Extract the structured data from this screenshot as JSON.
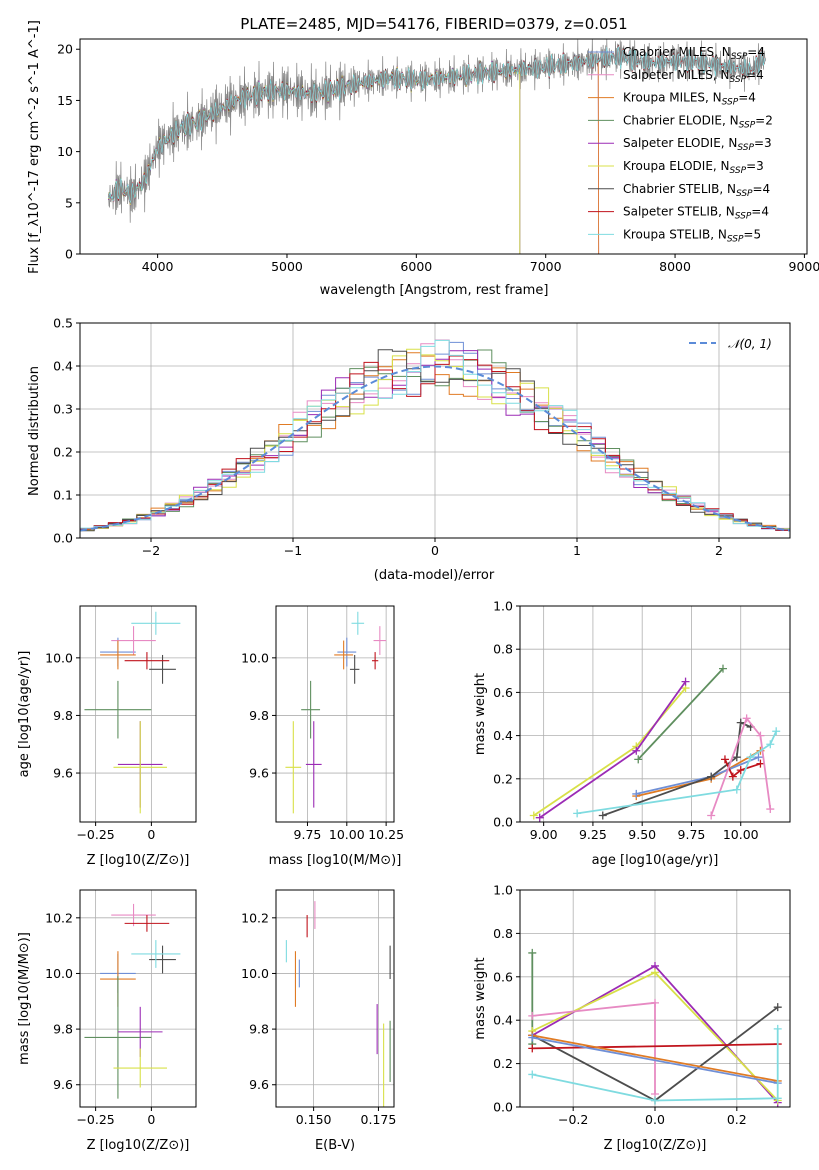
{
  "colors": {
    "Chabrier MILES": "#6f8fd6",
    "Salpeter MILES": "#e78ac3",
    "Kroupa MILES": "#e07b24",
    "Chabrier ELODIE": "#5f8f5f",
    "Salpeter ELODIE": "#9b2bb5",
    "Kroupa ELODIE": "#d8e048",
    "Chabrier STELIB": "#4d4d4d",
    "Salpeter STELIB": "#c0131c",
    "Kroupa STELIB": "#7fdbe0"
  },
  "chart_data": [
    {
      "id": "spectrum",
      "type": "line",
      "title": "PLATE=2485, MJD=54176, FIBERID=0379, z=0.051",
      "xlabel": "wavelength [Angstrom, rest frame]",
      "ylabel": "Flux [f_λ10^-17 erg cm^-2 s^-1 A^-1]",
      "xlim": [
        3400,
        9020
      ],
      "ylim": [
        0,
        21
      ],
      "xticks": [
        4000,
        5000,
        6000,
        7000,
        8000,
        9000
      ],
      "yticks": [
        0,
        5,
        10,
        15,
        20
      ],
      "grid": false,
      "legend_position": "right",
      "series": [
        {
          "name": "Chabrier MILES, N_SSP=4",
          "label_main": "Chabrier MILES, N",
          "label_sub": "SSP",
          "label_tail": "=4",
          "key": "Chabrier MILES"
        },
        {
          "name": "Salpeter MILES, N_SSP=4",
          "label_main": "Salpeter MILES, N",
          "label_sub": "SSP",
          "label_tail": "=4",
          "key": "Salpeter MILES"
        },
        {
          "name": "Kroupa MILES, N_SSP=4",
          "label_main": "Kroupa MILES, N",
          "label_sub": "SSP",
          "label_tail": "=4",
          "key": "Kroupa MILES"
        },
        {
          "name": "Chabrier ELODIE, N_SSP=2",
          "label_main": "Chabrier ELODIE, N",
          "label_sub": "SSP",
          "label_tail": "=2",
          "key": "Chabrier ELODIE"
        },
        {
          "name": "Salpeter ELODIE, N_SSP=3",
          "label_main": "Salpeter ELODIE, N",
          "label_sub": "SSP",
          "label_tail": "=3",
          "key": "Salpeter ELODIE"
        },
        {
          "name": "Kroupa ELODIE, N_SSP=3",
          "label_main": "Kroupa ELODIE, N",
          "label_sub": "SSP",
          "label_tail": "=3",
          "key": "Kroupa ELODIE"
        },
        {
          "name": "Chabrier STELIB, N_SSP=4",
          "label_main": "Chabrier STELIB, N",
          "label_sub": "SSP",
          "label_tail": "=4",
          "key": "Chabrier STELIB"
        },
        {
          "name": "Salpeter STELIB, N_SSP=4",
          "label_main": "Salpeter STELIB, N",
          "label_sub": "SSP",
          "label_tail": "=4",
          "key": "Salpeter STELIB"
        },
        {
          "name": "Kroupa STELIB, N_SSP=5",
          "label_main": "Kroupa STELIB, N",
          "label_sub": "SSP",
          "label_tail": "=5",
          "key": "Kroupa STELIB"
        }
      ],
      "continuum": [
        [
          3620,
          5.2
        ],
        [
          3700,
          6.5
        ],
        [
          3800,
          5.8
        ],
        [
          3900,
          7.2
        ],
        [
          4000,
          10.4
        ],
        [
          4100,
          11.5
        ],
        [
          4200,
          12.5
        ],
        [
          4300,
          12.8
        ],
        [
          4400,
          13.6
        ],
        [
          4600,
          15.0
        ],
        [
          4800,
          15.8
        ],
        [
          5000,
          16.0
        ],
        [
          5200,
          15.6
        ],
        [
          5400,
          16.2
        ],
        [
          5600,
          16.8
        ],
        [
          5800,
          17.2
        ],
        [
          6000,
          17.0
        ],
        [
          6200,
          17.2
        ],
        [
          6400,
          17.5
        ],
        [
          6600,
          17.8
        ],
        [
          6800,
          18.0
        ],
        [
          7000,
          18.3
        ],
        [
          7200,
          18.6
        ],
        [
          7400,
          19.0
        ],
        [
          7600,
          19.3
        ],
        [
          7800,
          18.6
        ],
        [
          8000,
          18.9
        ],
        [
          8200,
          18.7
        ],
        [
          8400,
          18.3
        ],
        [
          8600,
          18.0
        ],
        [
          8700,
          19.3
        ]
      ],
      "cutoffs": {
        "Chabrier MILES": 7410,
        "Salpeter MILES": 7410,
        "Kroupa MILES": 7410,
        "Kroupa ELODIE": 6800,
        "Salpeter ELODIE": 6800,
        "Chabrier ELODIE": 6800
      }
    },
    {
      "id": "residuals",
      "type": "step",
      "xlabel": "(data-model)/error",
      "ylabel": "Normed distribution",
      "xlim": [
        -2.5,
        2.5
      ],
      "ylim": [
        0,
        0.5
      ],
      "xticks": [
        -2,
        -1,
        0,
        1,
        2
      ],
      "yticks": [
        0.0,
        0.1,
        0.2,
        0.3,
        0.4,
        0.5
      ],
      "grid": true,
      "legend_position": "top-right",
      "reference": {
        "name": "N(0,1)",
        "label": "𝒩(0, 1)",
        "mu": 0,
        "sigma": 1,
        "color": "#5b8bd8"
      },
      "bin_width": 0.1
    },
    {
      "id": "age_vs_Z",
      "type": "errorbar",
      "xlabel": "Z [log10(Z/Z⊙)]",
      "ylabel": "age [log10(age/yr)]",
      "xlim": [
        -0.32,
        0.2
      ],
      "ylim": [
        9.43,
        10.18
      ],
      "xticks": [
        -0.25,
        0.0
      ],
      "yticks": [
        9.6,
        9.8,
        10.0
      ],
      "grid": true,
      "points": [
        {
          "key": "Chabrier MILES",
          "x": -0.15,
          "xerr": 0.08,
          "y": 10.02,
          "yerr": 0.05
        },
        {
          "key": "Salpeter MILES",
          "x": -0.08,
          "xerr": 0.1,
          "y": 10.06,
          "yerr": 0.05
        },
        {
          "key": "Kroupa MILES",
          "x": -0.15,
          "xerr": 0.08,
          "y": 10.01,
          "yerr": 0.05
        },
        {
          "key": "Chabrier ELODIE",
          "x": -0.15,
          "xerr": 0.15,
          "y": 9.82,
          "yerr": 0.1
        },
        {
          "key": "Salpeter ELODIE",
          "x": -0.05,
          "xerr": 0.1,
          "y": 9.63,
          "yerr": 0.15
        },
        {
          "key": "Kroupa ELODIE",
          "x": -0.05,
          "xerr": 0.12,
          "y": 9.62,
          "yerr": 0.16
        },
        {
          "key": "Chabrier STELIB",
          "x": 0.05,
          "xerr": 0.06,
          "y": 9.96,
          "yerr": 0.05
        },
        {
          "key": "Salpeter STELIB",
          "x": -0.02,
          "xerr": 0.1,
          "y": 9.99,
          "yerr": 0.03
        },
        {
          "key": "Kroupa STELIB",
          "x": 0.02,
          "xerr": 0.11,
          "y": 10.12,
          "yerr": 0.04
        }
      ]
    },
    {
      "id": "age_vs_mass",
      "type": "errorbar",
      "xlabel": "mass [log10(M/M⊙)]",
      "ylabel": "",
      "xlim": [
        9.55,
        10.3
      ],
      "ylim": [
        9.43,
        10.18
      ],
      "xticks": [
        9.75,
        10.0,
        10.25
      ],
      "xtick_labels": [
        "9.75",
        "10.00",
        "10.25"
      ],
      "yticks": [
        9.6,
        9.8,
        10.0
      ],
      "grid": true,
      "points": [
        {
          "key": "Chabrier MILES",
          "x": 10.0,
          "xerr": 0.06,
          "y": 10.02,
          "yerr": 0.05
        },
        {
          "key": "Salpeter MILES",
          "x": 10.21,
          "xerr": 0.04,
          "y": 10.06,
          "yerr": 0.05
        },
        {
          "key": "Kroupa MILES",
          "x": 9.98,
          "xerr": 0.06,
          "y": 10.01,
          "yerr": 0.05
        },
        {
          "key": "Chabrier ELODIE",
          "x": 9.77,
          "xerr": 0.06,
          "y": 9.82,
          "yerr": 0.1
        },
        {
          "key": "Salpeter ELODIE",
          "x": 9.79,
          "xerr": 0.05,
          "y": 9.63,
          "yerr": 0.15
        },
        {
          "key": "Kroupa ELODIE",
          "x": 9.66,
          "xerr": 0.05,
          "y": 9.62,
          "yerr": 0.16
        },
        {
          "key": "Chabrier STELIB",
          "x": 10.05,
          "xerr": 0.03,
          "y": 9.96,
          "yerr": 0.05
        },
        {
          "key": "Salpeter STELIB",
          "x": 10.18,
          "xerr": 0.02,
          "y": 9.99,
          "yerr": 0.03
        },
        {
          "key": "Kroupa STELIB",
          "x": 10.07,
          "xerr": 0.04,
          "y": 10.12,
          "yerr": 0.04
        }
      ]
    },
    {
      "id": "weight_vs_age",
      "type": "line",
      "xlabel": "age [log10(age/yr)]",
      "ylabel": "mass weight",
      "xlim": [
        8.88,
        10.25
      ],
      "ylim": [
        0,
        1.0
      ],
      "xticks": [
        9.0,
        9.25,
        9.5,
        9.75,
        10.0
      ],
      "xtick_labels": [
        "9.00",
        "9.25",
        "9.50",
        "9.75",
        "10.00"
      ],
      "yticks": [
        0.0,
        0.2,
        0.4,
        0.6,
        0.8,
        1.0
      ],
      "grid": true,
      "series": [
        {
          "key": "Kroupa ELODIE",
          "x": [
            8.95,
            9.47,
            9.72
          ],
          "y": [
            0.03,
            0.35,
            0.62
          ]
        },
        {
          "key": "Salpeter ELODIE",
          "x": [
            8.98,
            9.47,
            9.72
          ],
          "y": [
            0.02,
            0.33,
            0.65
          ]
        },
        {
          "key": "Chabrier ELODIE",
          "x": [
            9.48,
            9.91
          ],
          "y": [
            0.29,
            0.71
          ]
        },
        {
          "key": "Kroupa MILES",
          "x": [
            9.47,
            9.85,
            10.1
          ],
          "y": [
            0.12,
            0.2,
            0.33
          ]
        },
        {
          "key": "Chabrier MILES",
          "x": [
            9.47,
            9.85,
            10.09
          ],
          "y": [
            0.13,
            0.21,
            0.3
          ]
        },
        {
          "key": "Chabrier STELIB",
          "x": [
            9.3,
            9.85,
            9.98,
            10.0,
            10.05
          ],
          "y": [
            0.03,
            0.21,
            0.3,
            0.46,
            0.44
          ]
        },
        {
          "key": "Salpeter STELIB",
          "x": [
            9.92,
            9.96,
            10.0,
            10.1
          ],
          "y": [
            0.29,
            0.21,
            0.24,
            0.27
          ]
        },
        {
          "key": "Salpeter MILES",
          "x": [
            9.85,
            10.03,
            10.1,
            10.15
          ],
          "y": [
            0.03,
            0.48,
            0.4,
            0.06
          ]
        },
        {
          "key": "Kroupa STELIB",
          "x": [
            9.17,
            9.98,
            10.05,
            10.15,
            10.18
          ],
          "y": [
            0.04,
            0.15,
            0.3,
            0.36,
            0.42
          ]
        }
      ]
    },
    {
      "id": "mass_vs_Z",
      "type": "errorbar",
      "xlabel": "Z [log10(Z/Z⊙)]",
      "ylabel": "mass [log10(M/M⊙)]",
      "xlim": [
        -0.32,
        0.2
      ],
      "ylim": [
        9.52,
        10.3
      ],
      "xticks": [
        -0.25,
        0.0
      ],
      "yticks": [
        9.6,
        9.8,
        10.0,
        10.2
      ],
      "grid": true,
      "points": [
        {
          "key": "Chabrier MILES",
          "x": -0.15,
          "xerr": 0.08,
          "y": 10.0,
          "yerr": 0.07
        },
        {
          "key": "Salpeter MILES",
          "x": -0.08,
          "xerr": 0.1,
          "y": 10.21,
          "yerr": 0.04
        },
        {
          "key": "Kroupa MILES",
          "x": -0.15,
          "xerr": 0.08,
          "y": 9.98,
          "yerr": 0.1
        },
        {
          "key": "Chabrier ELODIE",
          "x": -0.15,
          "xerr": 0.15,
          "y": 9.77,
          "yerr": 0.22
        },
        {
          "key": "Salpeter ELODIE",
          "x": -0.05,
          "xerr": 0.1,
          "y": 9.79,
          "yerr": 0.09
        },
        {
          "key": "Kroupa ELODIE",
          "x": -0.05,
          "xerr": 0.12,
          "y": 9.66,
          "yerr": 0.07
        },
        {
          "key": "Chabrier STELIB",
          "x": 0.05,
          "xerr": 0.06,
          "y": 10.05,
          "yerr": 0.05
        },
        {
          "key": "Salpeter STELIB",
          "x": -0.02,
          "xerr": 0.1,
          "y": 10.18,
          "yerr": 0.03
        },
        {
          "key": "Kroupa STELIB",
          "x": 0.02,
          "xerr": 0.11,
          "y": 10.07,
          "yerr": 0.05
        }
      ]
    },
    {
      "id": "mass_vs_ebv",
      "type": "errorbar",
      "xlabel": "E(B-V)",
      "ylabel": "",
      "xlim": [
        0.1355,
        0.181
      ],
      "ylim": [
        9.52,
        10.3
      ],
      "xticks": [
        0.15,
        0.175
      ],
      "xtick_labels": [
        "0.150",
        "0.175"
      ],
      "yticks": [
        9.6,
        9.8,
        10.0,
        10.2
      ],
      "grid": true,
      "points": [
        {
          "key": "Chabrier MILES",
          "x": 0.1445,
          "xerr": 0,
          "y": 10.0,
          "yerr": 0.05
        },
        {
          "key": "Salpeter MILES",
          "x": 0.1505,
          "xerr": 0,
          "y": 10.21,
          "yerr": 0.05
        },
        {
          "key": "Kroupa MILES",
          "x": 0.143,
          "xerr": 0,
          "y": 9.98,
          "yerr": 0.1
        },
        {
          "key": "Chabrier ELODIE",
          "x": 0.1795,
          "xerr": 0,
          "y": 9.72,
          "yerr": 0.11
        },
        {
          "key": "Salpeter ELODIE",
          "x": 0.1745,
          "xerr": 0,
          "y": 9.8,
          "yerr": 0.09
        },
        {
          "key": "Kroupa ELODIE",
          "x": 0.177,
          "xerr": 0,
          "y": 9.65,
          "yerr": 0.17
        },
        {
          "key": "Chabrier STELIB",
          "x": 0.1795,
          "xerr": 0,
          "y": 10.04,
          "yerr": 0.06
        },
        {
          "key": "Salpeter STELIB",
          "x": 0.1475,
          "xerr": 0,
          "y": 10.17,
          "yerr": 0.04
        },
        {
          "key": "Kroupa STELIB",
          "x": 0.1395,
          "xerr": 0,
          "y": 10.08,
          "yerr": 0.04
        }
      ]
    },
    {
      "id": "weight_vs_Z",
      "type": "line",
      "xlabel": "Z [log10(Z/Z⊙)]",
      "ylabel": "mass weight",
      "xlim": [
        -0.33,
        0.33
      ],
      "ylim": [
        0,
        1.0
      ],
      "xticks": [
        -0.2,
        0.0,
        0.2
      ],
      "xtick_labels": [
        "−0.2",
        "0.0",
        "0.2"
      ],
      "yticks": [
        0.0,
        0.2,
        0.4,
        0.6,
        0.8,
        1.0
      ],
      "grid": true,
      "series": [
        {
          "key": "Chabrier ELODIE",
          "x": [
            -0.3,
            -0.3
          ],
          "y": [
            0.29,
            0.71
          ]
        },
        {
          "key": "Salpeter ELODIE",
          "x": [
            -0.3,
            0.0,
            0.3
          ],
          "y": [
            0.33,
            0.65,
            0.02
          ]
        },
        {
          "key": "Kroupa ELODIE",
          "x": [
            -0.3,
            0.0,
            0.3
          ],
          "y": [
            0.35,
            0.62,
            0.03
          ]
        },
        {
          "key": "Salpeter MILES",
          "x": [
            -0.3,
            0.0,
            0.0
          ],
          "y": [
            0.42,
            0.48,
            0.06
          ]
        },
        {
          "key": "Chabrier STELIB",
          "x": [
            -0.3,
            0.0,
            0.3
          ],
          "y": [
            0.33,
            0.03,
            0.46
          ]
        },
        {
          "key": "Salpeter STELIB",
          "x": [
            -0.3,
            0.3
          ],
          "y": [
            0.27,
            0.29
          ]
        },
        {
          "key": "Kroupa MILES",
          "x": [
            -0.3,
            0.3
          ],
          "y": [
            0.33,
            0.12
          ]
        },
        {
          "key": "Chabrier MILES",
          "x": [
            -0.3,
            0.3
          ],
          "y": [
            0.32,
            0.11
          ]
        },
        {
          "key": "Kroupa STELIB",
          "x": [
            -0.3,
            0.0,
            0.3,
            0.3
          ],
          "y": [
            0.15,
            0.03,
            0.04,
            0.36
          ]
        }
      ]
    }
  ]
}
